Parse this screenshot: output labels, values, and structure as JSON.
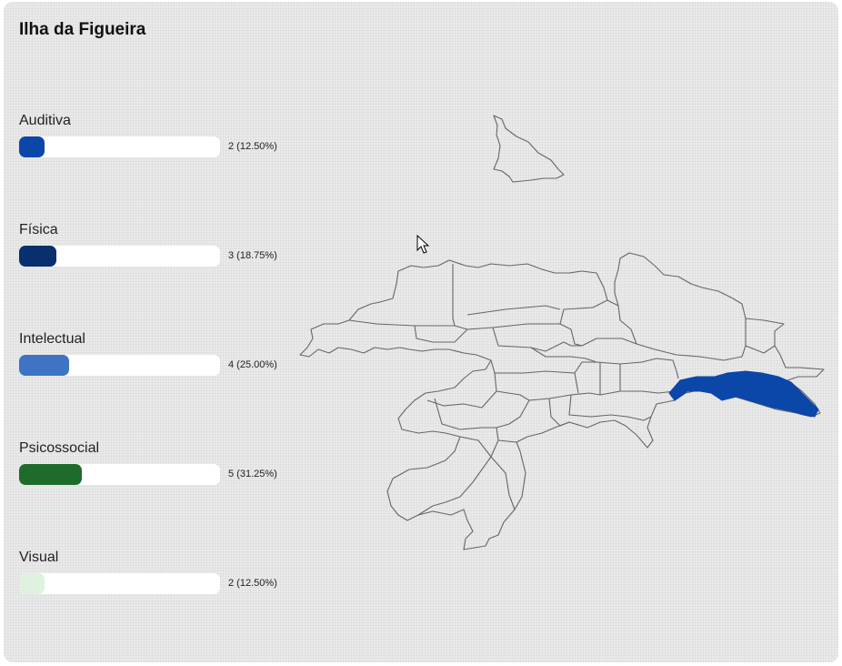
{
  "panel": {
    "title": "Ilha da Figueira"
  },
  "categories": [
    {
      "label": "Auditiva",
      "count": "2 (12.50%)",
      "fraction": 0.125,
      "color": "#0a47a9"
    },
    {
      "label": "Física",
      "count": "3 (18.75%)",
      "fraction": 0.1875,
      "color": "#0a2f6e"
    },
    {
      "label": "Intelectual",
      "count": "4 (25.00%)",
      "fraction": 0.25,
      "color": "#3f74c4"
    },
    {
      "label": "Psicossocial",
      "count": "5 (31.25%)",
      "fraction": 0.3125,
      "color": "#1f6b2c"
    },
    {
      "label": "Visual",
      "count": "2 (12.50%)",
      "fraction": 0.125,
      "color": "#dff2df"
    }
  ],
  "map": {
    "highlight_color": "#0a47a9",
    "outline_color": "#666666"
  }
}
